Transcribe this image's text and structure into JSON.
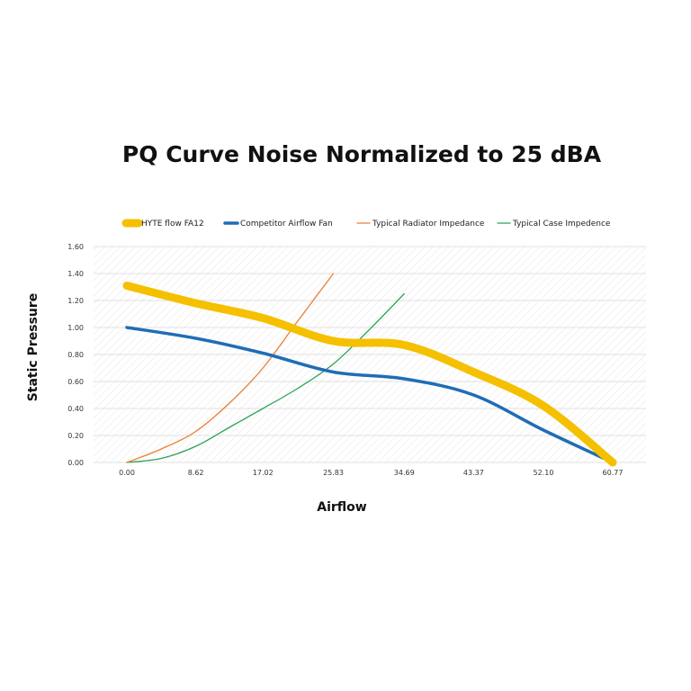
{
  "chart_data": {
    "type": "line",
    "title": "PQ Curve Noise Normalized to 25 dBA",
    "xlabel": "Airflow",
    "ylabel": "Static Pressure",
    "x_ticks": [
      "0.00",
      "8.62",
      "17.02",
      "25.83",
      "34.69",
      "43.37",
      "52.10",
      "60.77"
    ],
    "y_ticks": [
      "0.00",
      "0.20",
      "0.40",
      "0.60",
      "0.80",
      "1.00",
      "1.20",
      "1.40",
      "1.60"
    ],
    "xlim": [
      0,
      60.77
    ],
    "ylim": [
      0,
      1.6
    ],
    "grid": true,
    "legend_position": "top",
    "series": [
      {
        "name": "HYTE flow FA12",
        "color": "#f5c000",
        "weight": "heavy",
        "x": [
          0.0,
          8.62,
          17.02,
          25.83,
          34.69,
          43.37,
          52.1,
          60.77
        ],
        "values": [
          1.31,
          1.18,
          1.07,
          0.9,
          0.87,
          0.67,
          0.42,
          0.0
        ]
      },
      {
        "name": "Competitor Airflow Fan",
        "color": "#1f6db5",
        "weight": "medium",
        "x": [
          0.0,
          8.62,
          17.02,
          25.83,
          34.69,
          43.37,
          52.1,
          60.77
        ],
        "values": [
          1.0,
          0.92,
          0.81,
          0.67,
          0.62,
          0.5,
          0.24,
          0.0
        ]
      },
      {
        "name": "Typical Radiator Impedance",
        "color": "#ed7d31",
        "weight": "thin",
        "x": [
          0.0,
          4.31,
          8.62,
          12.82,
          17.02,
          21.4,
          25.83
        ],
        "values": [
          0.0,
          0.1,
          0.23,
          0.44,
          0.7,
          1.05,
          1.4
        ]
      },
      {
        "name": "Typical Case Impedence",
        "color": "#2ea25a",
        "weight": "thin",
        "x": [
          0.0,
          4.31,
          8.62,
          12.82,
          17.02,
          21.4,
          25.83,
          30.26,
          34.69
        ],
        "values": [
          0.0,
          0.03,
          0.12,
          0.26,
          0.4,
          0.55,
          0.73,
          0.98,
          1.25
        ]
      }
    ]
  }
}
